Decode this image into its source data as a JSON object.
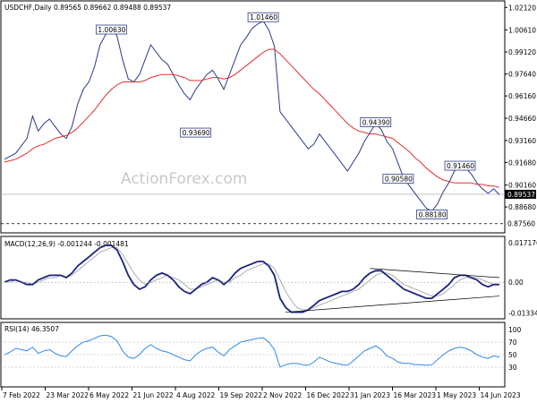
{
  "chart_data": [
    {
      "type": "line",
      "title": "USDCHF,Daily  0.89565 0.89662 0.89488 0.89537",
      "watermark": "ActionForex.com",
      "ylim": [
        0.87,
        1.025
      ],
      "y_ticks": [
        "1.02120",
        "1.00610",
        "0.99120",
        "0.97640",
        "0.96160",
        "0.94660",
        "0.93160",
        "0.91680",
        "0.90160",
        "0.88680"
      ],
      "current_price": "0.89537",
      "reference_level": "0.87560",
      "series": [
        {
          "values": [
            0.919,
            0.921,
            0.923,
            0.928,
            0.933,
            0.948,
            0.938,
            0.943,
            0.946,
            0.941,
            0.936,
            0.933,
            0.941,
            0.956,
            0.966,
            0.971,
            0.981,
            0.996,
            1.003,
            1.007,
            1.002,
            0.986,
            0.973,
            0.971,
            0.976,
            0.986,
            0.996,
            0.991,
            0.986,
            0.983,
            0.976,
            0.969,
            0.963,
            0.959,
            0.966,
            0.971,
            0.976,
            0.979,
            0.973,
            0.966,
            0.976,
            0.986,
            0.996,
            1.001,
            1.007,
            1.01,
            1.012,
            1.006,
            0.995,
            0.951,
            0.946,
            0.941,
            0.936,
            0.931,
            0.926,
            0.929,
            0.936,
            0.931,
            0.926,
            0.921,
            0.916,
            0.911,
            0.917,
            0.923,
            0.931,
            0.937,
            0.943,
            0.939,
            0.931,
            0.926,
            0.916,
            0.906,
            0.901,
            0.896,
            0.891,
            0.886,
            0.884,
            0.889,
            0.897,
            0.903,
            0.911,
            0.914,
            0.913,
            0.909,
            0.903,
            0.899,
            0.896,
            0.899,
            0.895
          ]
        },
        {
          "values": [
            0.917,
            0.918,
            0.919,
            0.921,
            0.923,
            0.926,
            0.928,
            0.929,
            0.931,
            0.933,
            0.934,
            0.935,
            0.937,
            0.94,
            0.944,
            0.948,
            0.952,
            0.957,
            0.962,
            0.966,
            0.969,
            0.971,
            0.971,
            0.971,
            0.971,
            0.972,
            0.974,
            0.975,
            0.976,
            0.976,
            0.976,
            0.975,
            0.974,
            0.972,
            0.972,
            0.972,
            0.973,
            0.974,
            0.974,
            0.973,
            0.974,
            0.976,
            0.979,
            0.982,
            0.985,
            0.988,
            0.991,
            0.993,
            0.993,
            0.99,
            0.986,
            0.982,
            0.978,
            0.974,
            0.97,
            0.966,
            0.963,
            0.959,
            0.955,
            0.951,
            0.947,
            0.943,
            0.94,
            0.938,
            0.937,
            0.936,
            0.936,
            0.935,
            0.934,
            0.933,
            0.93,
            0.927,
            0.924,
            0.92,
            0.917,
            0.913,
            0.91,
            0.907,
            0.905,
            0.904,
            0.903,
            0.903,
            0.903,
            0.903,
            0.902,
            0.902,
            0.901,
            0.901,
            0.9
          ]
        }
      ],
      "annotations": [
        {
          "label": "1.00630",
          "at": 19,
          "value": 1.0063
        },
        {
          "label": "0.93690",
          "at": 34,
          "value": 0.9369
        },
        {
          "label": "1.01460",
          "at": 46,
          "value": 1.0146
        },
        {
          "label": "0.90580",
          "at": 70,
          "value": 0.9058
        },
        {
          "label": "0.94390",
          "at": 66,
          "value": 0.9439
        },
        {
          "label": "0.88180",
          "at": 76,
          "value": 0.8818
        },
        {
          "label": "0.91460",
          "at": 81,
          "value": 0.9146
        }
      ]
    },
    {
      "type": "line",
      "title": "MACD(12,26,9) -0.001244 -0.001481",
      "ylim": [
        -0.0155,
        0.0195
      ],
      "y_ticks": [
        "0.017176",
        "0.00",
        "-0.01334"
      ],
      "series": [
        {
          "values": [
            0.0,
            0.001,
            0.001,
            0.0,
            -0.001,
            -0.001,
            0.001,
            0.002,
            0.003,
            0.003,
            0.003,
            0.002,
            0.004,
            0.007,
            0.009,
            0.011,
            0.013,
            0.015,
            0.016,
            0.016,
            0.014,
            0.009,
            0.003,
            -0.001,
            -0.003,
            -0.002,
            0.001,
            0.003,
            0.004,
            0.003,
            0.001,
            -0.002,
            -0.004,
            -0.005,
            -0.003,
            -0.001,
            0.0,
            0.002,
            0.001,
            -0.001,
            0.001,
            0.004,
            0.006,
            0.007,
            0.008,
            0.009,
            0.009,
            0.007,
            0.003,
            -0.007,
            -0.011,
            -0.013,
            -0.013,
            -0.013,
            -0.012,
            -0.01,
            -0.008,
            -0.007,
            -0.006,
            -0.005,
            -0.004,
            -0.004,
            -0.003,
            -0.001,
            0.002,
            0.004,
            0.005,
            0.005,
            0.003,
            0.001,
            -0.001,
            -0.003,
            -0.004,
            -0.005,
            -0.006,
            -0.007,
            -0.007,
            -0.005,
            -0.003,
            -0.001,
            0.002,
            0.003,
            0.003,
            0.002,
            0.001,
            -0.001,
            -0.002,
            -0.001,
            -0.001
          ]
        },
        {
          "values": [
            0.0,
            0.0,
            0.001,
            0.0,
            0.0,
            -0.001,
            0.0,
            0.001,
            0.002,
            0.002,
            0.003,
            0.002,
            0.003,
            0.005,
            0.007,
            0.009,
            0.011,
            0.013,
            0.014,
            0.015,
            0.015,
            0.012,
            0.008,
            0.004,
            0.001,
            -0.001,
            0.0,
            0.001,
            0.002,
            0.003,
            0.002,
            0.001,
            -0.001,
            -0.003,
            -0.003,
            -0.002,
            -0.001,
            0.0,
            0.001,
            0.0,
            0.0,
            0.002,
            0.003,
            0.005,
            0.006,
            0.007,
            0.008,
            0.008,
            0.006,
            0.001,
            -0.004,
            -0.008,
            -0.011,
            -0.012,
            -0.012,
            -0.011,
            -0.01,
            -0.009,
            -0.008,
            -0.007,
            -0.006,
            -0.005,
            -0.004,
            -0.003,
            -0.001,
            0.001,
            0.003,
            0.004,
            0.004,
            0.003,
            0.001,
            -0.001,
            -0.002,
            -0.003,
            -0.004,
            -0.005,
            -0.006,
            -0.006,
            -0.005,
            -0.003,
            -0.001,
            0.001,
            0.002,
            0.002,
            0.002,
            0.001,
            0.0,
            -0.001,
            -0.001
          ]
        }
      ]
    },
    {
      "type": "line",
      "title": "RSI(14) 46.3507",
      "ylim": [
        0,
        100
      ],
      "y_ticks": [
        "100",
        "70",
        "50",
        "30"
      ],
      "series": [
        {
          "values": [
            50,
            54,
            60,
            58,
            56,
            62,
            52,
            56,
            58,
            52,
            48,
            47,
            56,
            64,
            70,
            72,
            76,
            80,
            81,
            79,
            72,
            56,
            46,
            44,
            50,
            60,
            66,
            60,
            56,
            54,
            50,
            46,
            42,
            40,
            50,
            56,
            60,
            62,
            54,
            48,
            58,
            64,
            70,
            72,
            74,
            76,
            77,
            70,
            58,
            30,
            34,
            36,
            36,
            34,
            33,
            38,
            46,
            42,
            38,
            36,
            34,
            33,
            40,
            48,
            56,
            60,
            64,
            58,
            48,
            44,
            38,
            36,
            36,
            34,
            34,
            33,
            34,
            42,
            50,
            56,
            60,
            62,
            60,
            56,
            50,
            46,
            44,
            48,
            46
          ]
        }
      ]
    }
  ],
  "x_ticks": [
    "7 Feb 2022",
    "23 Mar 2022",
    "6 May 2022",
    "21 Jun 2022",
    "4 Aug 2022",
    "19 Sep 2022",
    "2 Nov 2022",
    "16 Dec 2022",
    "31 Jan 2023",
    "16 Mar 2023",
    "1 May 2023",
    "14 Jun 2023"
  ]
}
